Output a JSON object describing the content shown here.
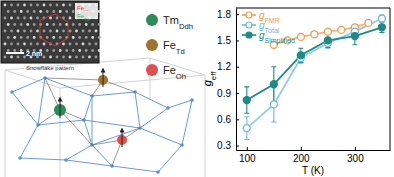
{
  "chart_data": {
    "type": "line",
    "x_label": "T (K)",
    "y_label": "geff",
    "xlim": [
      80,
      365
    ],
    "xticks": [
      100,
      200,
      300
    ],
    "ylim": [
      0.25,
      1.87
    ],
    "yticks": [
      0.3,
      0.6,
      0.9,
      1.2,
      1.5,
      1.8
    ],
    "legend": "upper left",
    "series": [
      {
        "name": "gFMR",
        "color": "#f39c4a",
        "marker": "open-circle",
        "x": [
          150,
          175,
          200,
          225,
          250,
          275,
          300,
          325
        ],
        "values": [
          1.45,
          1.5,
          1.54,
          1.57,
          1.6,
          1.62,
          1.65,
          1.7
        ]
      },
      {
        "name": "gTotal",
        "color": "#6cb8e6",
        "marker": "open-circle",
        "x": [
          100,
          150,
          200,
          250,
          300,
          350
        ],
        "values": [
          0.5,
          0.77,
          1.3,
          1.47,
          1.6,
          1.75
        ],
        "errors": [
          0.13,
          0.2,
          0.06,
          0.06,
          0.05,
          0.04
        ]
      },
      {
        "name": "gSimplified",
        "color": "#1f8a86",
        "marker": "filled-circle",
        "x": [
          100,
          150,
          200,
          250,
          300,
          350
        ],
        "values": [
          0.82,
          1.0,
          1.33,
          1.5,
          1.55,
          1.65
        ],
        "errors": [
          0.15,
          0.2,
          0.08,
          0.08,
          0.1,
          0.06
        ]
      }
    ]
  },
  "diagram": {
    "inset": {
      "caption": "Snowflake pattern",
      "scale_bar": "2 nm",
      "labels": [
        {
          "text": "FeOh",
          "color": "#e23b3b"
        },
        {
          "text": "FeTd",
          "color": "#3fae49"
        }
      ]
    },
    "legend": [
      {
        "label": "TmDdh",
        "color": "#2e8b57"
      },
      {
        "label": "FeTd",
        "color": "#a0742c"
      },
      {
        "label": "FeOh",
        "color": "#e0504a"
      }
    ]
  }
}
